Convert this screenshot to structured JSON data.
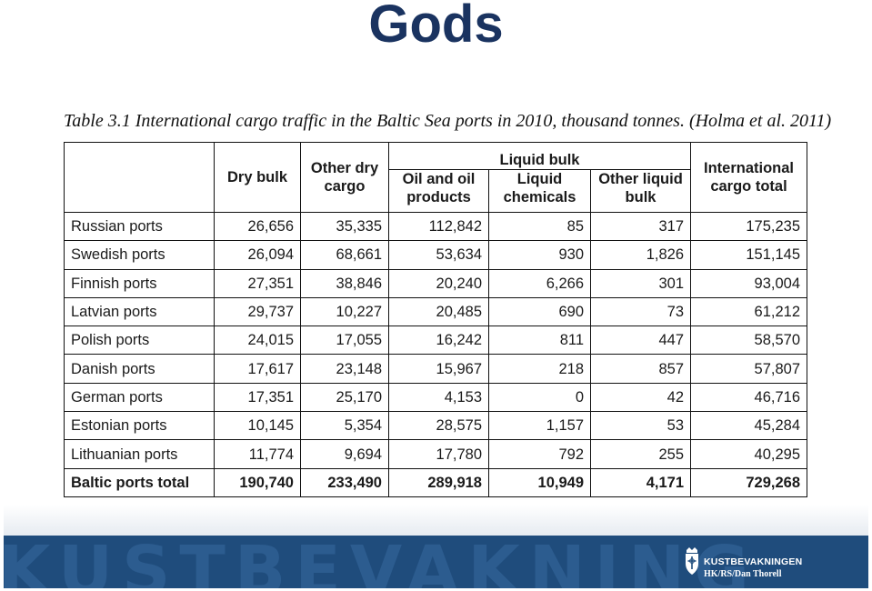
{
  "slide": {
    "title": "Gods"
  },
  "caption": "Table 3.1 International cargo traffic in the Baltic Sea ports in 2010, thousand tonnes. (Holma et al. 2011)",
  "table": {
    "headers": {
      "dry_bulk": "Dry bulk",
      "other_dry_cargo": "Other dry cargo",
      "liquid_bulk": "Liquid bulk",
      "oil_products": "Oil and oil products",
      "liquid_chemicals": "Liquid chemicals",
      "other_liquid_bulk": "Other liquid bulk",
      "international_total": "International cargo total"
    },
    "rows": [
      {
        "port": "Russian ports",
        "dry_bulk": "26,656",
        "other_dry": "35,335",
        "oil": "112,842",
        "chemicals": "85",
        "other_liquid": "317",
        "total": "175,235"
      },
      {
        "port": "Swedish ports",
        "dry_bulk": "26,094",
        "other_dry": "68,661",
        "oil": "53,634",
        "chemicals": "930",
        "other_liquid": "1,826",
        "total": "151,145"
      },
      {
        "port": "Finnish ports",
        "dry_bulk": "27,351",
        "other_dry": "38,846",
        "oil": "20,240",
        "chemicals": "6,266",
        "other_liquid": "301",
        "total": "93,004"
      },
      {
        "port": "Latvian ports",
        "dry_bulk": "29,737",
        "other_dry": "10,227",
        "oil": "20,485",
        "chemicals": "690",
        "other_liquid": "73",
        "total": "61,212"
      },
      {
        "port": "Polish ports",
        "dry_bulk": "24,015",
        "other_dry": "17,055",
        "oil": "16,242",
        "chemicals": "811",
        "other_liquid": "447",
        "total": "58,570"
      },
      {
        "port": "Danish ports",
        "dry_bulk": "17,617",
        "other_dry": "23,148",
        "oil": "15,967",
        "chemicals": "218",
        "other_liquid": "857",
        "total": "57,807"
      },
      {
        "port": "German ports",
        "dry_bulk": "17,351",
        "other_dry": "25,170",
        "oil": "4,153",
        "chemicals": "0",
        "other_liquid": "42",
        "total": "46,716"
      },
      {
        "port": "Estonian ports",
        "dry_bulk": "10,145",
        "other_dry": "5,354",
        "oil": "28,575",
        "chemicals": "1,157",
        "other_liquid": "53",
        "total": "45,284"
      },
      {
        "port": "Lithuanian ports",
        "dry_bulk": "11,774",
        "other_dry": "9,694",
        "oil": "17,780",
        "chemicals": "792",
        "other_liquid": "255",
        "total": "40,295"
      }
    ],
    "total_row": {
      "port": "Baltic ports total",
      "dry_bulk": "190,740",
      "other_dry": "233,490",
      "oil": "289,918",
      "chemicals": "10,949",
      "other_liquid": "4,171",
      "total": "729,268"
    }
  },
  "footer": {
    "watermark": "KUSTBEVAKNING",
    "brand": "KUSTBEVAKNINGEN",
    "credit": "HK/RS/Dan Thorell",
    "crest_icon": "swedish-coast-guard-crest-icon",
    "colors": {
      "band": "#1f4c7c",
      "title": "#1a3360"
    }
  }
}
